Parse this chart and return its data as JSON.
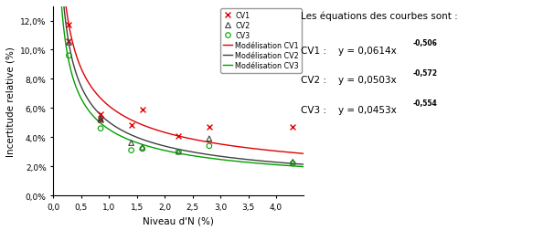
{
  "cv1_x": [
    0.28,
    0.28,
    0.85,
    0.85,
    1.4,
    1.6,
    2.25,
    2.8,
    4.3
  ],
  "cv1_y": [
    0.117,
    0.106,
    0.056,
    0.052,
    0.048,
    0.059,
    0.041,
    0.047,
    0.047
  ],
  "cv2_x": [
    0.28,
    0.85,
    0.85,
    1.4,
    1.6,
    2.25,
    2.8,
    4.3
  ],
  "cv2_y": [
    0.105,
    0.053,
    0.052,
    0.036,
    0.033,
    0.03,
    0.039,
    0.023
  ],
  "cv3_x": [
    0.28,
    0.85,
    1.4,
    1.6,
    2.25,
    2.8,
    4.3
  ],
  "cv3_y": [
    0.096,
    0.046,
    0.031,
    0.032,
    0.03,
    0.034,
    0.022
  ],
  "cv1_a": 0.0614,
  "cv1_b": -0.506,
  "cv2_a": 0.0503,
  "cv2_b": -0.572,
  "cv3_a": 0.0453,
  "cv3_b": -0.554,
  "color_cv1": "#e00000",
  "color_cv2": "#404040",
  "color_cv3": "#00a000",
  "xlim": [
    0.0,
    4.5
  ],
  "ylim": [
    0.0,
    0.13
  ],
  "xlabel": "Niveau d'N (%)",
  "ylabel": "Incertitude relative (%)",
  "yticks": [
    0.0,
    0.02,
    0.04,
    0.06,
    0.08,
    0.1,
    0.12
  ],
  "ytick_labels": [
    "0,0%",
    "2,0%",
    "4,0%",
    "6,0%",
    "8,0%",
    "10,0%",
    "12,0%"
  ],
  "xticks": [
    0.0,
    0.5,
    1.0,
    1.5,
    2.0,
    2.5,
    3.0,
    3.5,
    4.0
  ],
  "xtick_labels": [
    "0,0",
    "0,5",
    "1,0",
    "1,5",
    "2,0",
    "2,5",
    "3,0",
    "3,5",
    "4,0"
  ],
  "ann_title": "Les équations des courbes sont :",
  "ann_cv1_base": "CV1 :    y = 0,0614x",
  "ann_cv1_sup": "-0,506",
  "ann_cv2_base": "CV2 :    y = 0,0503x",
  "ann_cv2_sup": "-0,572",
  "ann_cv3_base": "CV3 :    y = 0,0453x",
  "ann_cv3_sup": "-0,554",
  "legend_labels": [
    "CV1",
    "CV2",
    "CV3",
    "Modélisation CV1",
    "Modélisation CV2",
    "Modélisation CV3"
  ]
}
